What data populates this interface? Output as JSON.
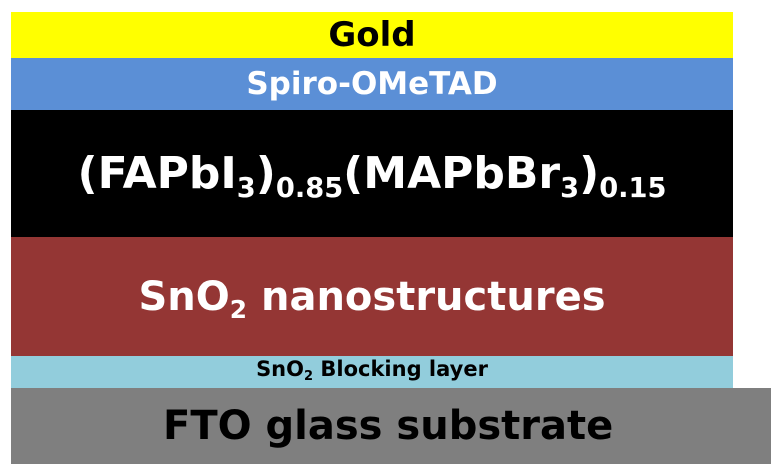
{
  "layers": {
    "gold": {
      "label": "Gold",
      "color": "#ffff00"
    },
    "spiro": {
      "label": "Spiro-OMeTAD",
      "color": "#5b8fd6"
    },
    "perovskite": {
      "color": "#000000",
      "parts": {
        "open1": "(FAPbI",
        "sub1": "3",
        "close1": ")",
        "sub2": "0.85",
        "open2": "(MAPbBr",
        "sub3": "3",
        "close2": ")",
        "sub4": "0.15"
      }
    },
    "nanostructures": {
      "color": "#943634",
      "prefix": "SnO",
      "sub": "2",
      "suffix": " nanostructures"
    },
    "blocking": {
      "color": "#92cddc",
      "prefix": "SnO",
      "sub": "2",
      "suffix": " Blocking layer"
    },
    "fto": {
      "label": "FTO glass substrate",
      "color": "#7f7f7f"
    }
  }
}
